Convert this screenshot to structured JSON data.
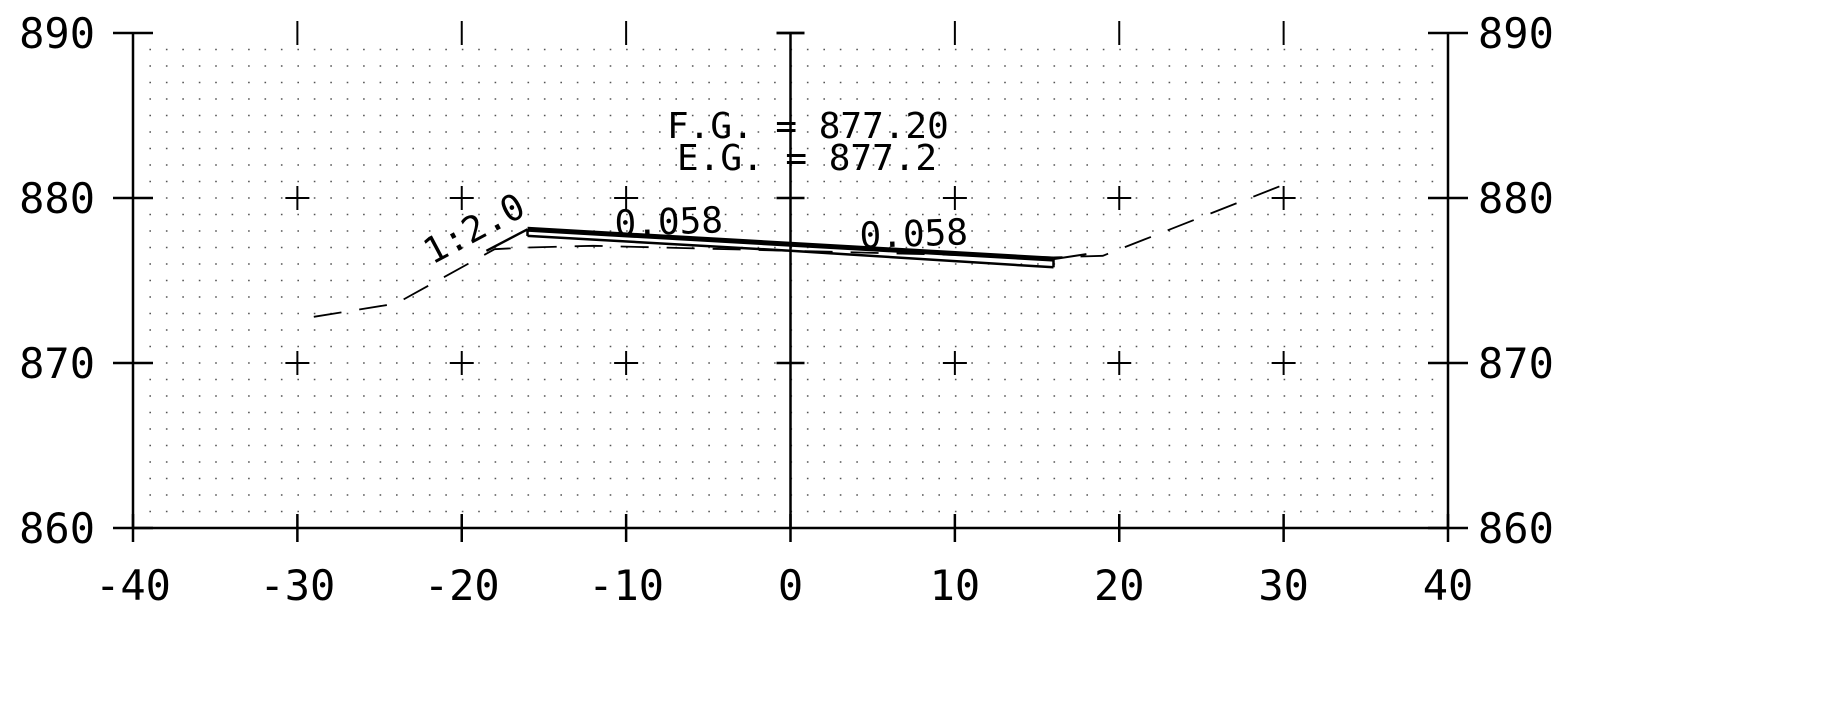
{
  "section": {
    "fg_text": "F.G. = 877.20",
    "eg_text": "E.G. = 877.2",
    "left_slope_text": "0.058",
    "right_slope_text": "0.058",
    "side_slope_text": "1:2.0"
  },
  "chart_data": {
    "type": "cross-section",
    "x_axis": {
      "range": [
        -40,
        40
      ],
      "ticks": [
        -40,
        -30,
        -20,
        -10,
        0,
        10,
        20,
        30,
        40
      ],
      "labels": [
        "-40",
        "-30",
        "-20",
        "-10",
        "0",
        "10",
        "20",
        "30",
        "40"
      ]
    },
    "y_axis": {
      "range": [
        860,
        890
      ],
      "ticks": [
        860,
        870,
        880,
        890
      ],
      "labels": [
        "860",
        "870",
        "880",
        "890"
      ]
    },
    "grid": true,
    "pavement_top": [
      [
        -16,
        878.1
      ],
      [
        0,
        877.2
      ],
      [
        16,
        876.3
      ]
    ],
    "pavement_bottom": [
      [
        -16,
        877.7
      ],
      [
        0,
        876.8
      ],
      [
        16,
        875.8
      ]
    ],
    "existing_ground": [
      [
        -29,
        872.8
      ],
      [
        -24,
        873.6
      ],
      [
        -18,
        876.9
      ],
      [
        -16,
        877.0
      ],
      [
        -12,
        877.1
      ],
      [
        16,
        876.4
      ],
      [
        19,
        876.5
      ],
      [
        30,
        880.8
      ]
    ],
    "left_slope": [
      [
        -16,
        878.1
      ],
      [
        -18.5,
        876.8
      ]
    ],
    "right_slope": [
      [
        16,
        876.3
      ],
      [
        18,
        876.6
      ]
    ],
    "colors": {
      "ink": "#000000",
      "grid": "#555555"
    }
  }
}
